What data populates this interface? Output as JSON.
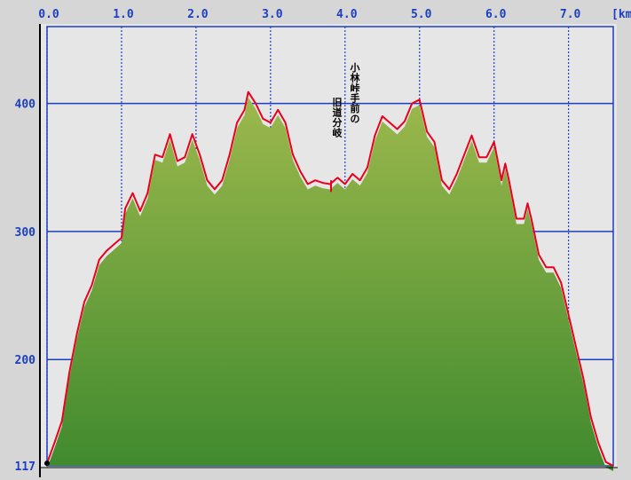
{
  "chart_data": {
    "type": "area",
    "xlabel": "",
    "ylabel": "",
    "x_unit": "[km]",
    "xlim": [
      0,
      7.6
    ],
    "ylim": [
      117,
      460
    ],
    "x_ticks": [
      "0.0",
      "1.0",
      "2.0",
      "3.0",
      "4.0",
      "5.0",
      "6.0",
      "7.0"
    ],
    "y_ticks": [
      "400",
      "300",
      "200",
      "117"
    ],
    "x_grid": [
      0,
      1,
      2,
      3,
      4,
      5,
      6,
      7
    ],
    "y_grid": [
      400,
      300,
      200
    ],
    "grid": true,
    "annotation": {
      "x": 4.05,
      "col1": "小林峠手前の",
      "col2": "旧道分岐"
    },
    "colors": {
      "background": "#d6d6d6",
      "plot_background": "#e6e6e6",
      "grid": "#1c3fc2",
      "line": "#e8001c",
      "fill_top": "#9cb84c",
      "fill_bottom": "#3f8a2e",
      "axis": "#000000"
    },
    "series": [
      {
        "values": [
          [
            0.0,
            119
          ],
          [
            0.1,
            135
          ],
          [
            0.2,
            152
          ],
          [
            0.3,
            190
          ],
          [
            0.4,
            220
          ],
          [
            0.5,
            245
          ],
          [
            0.6,
            258
          ],
          [
            0.7,
            278
          ],
          [
            0.8,
            285
          ],
          [
            0.9,
            290
          ],
          [
            1.0,
            295
          ],
          [
            1.05,
            318
          ],
          [
            1.15,
            330
          ],
          [
            1.25,
            316
          ],
          [
            1.35,
            330
          ],
          [
            1.45,
            360
          ],
          [
            1.55,
            358
          ],
          [
            1.65,
            376
          ],
          [
            1.75,
            355
          ],
          [
            1.85,
            358
          ],
          [
            1.95,
            376
          ],
          [
            2.05,
            360
          ],
          [
            2.15,
            340
          ],
          [
            2.25,
            333
          ],
          [
            2.35,
            340
          ],
          [
            2.45,
            360
          ],
          [
            2.55,
            385
          ],
          [
            2.65,
            395
          ],
          [
            2.7,
            409
          ],
          [
            2.8,
            400
          ],
          [
            2.9,
            388
          ],
          [
            3.0,
            385
          ],
          [
            3.1,
            395
          ],
          [
            3.2,
            385
          ],
          [
            3.3,
            360
          ],
          [
            3.4,
            347
          ],
          [
            3.5,
            337
          ],
          [
            3.6,
            340
          ],
          [
            3.7,
            338
          ],
          [
            3.8,
            337
          ],
          [
            3.9,
            342
          ],
          [
            4.0,
            337
          ],
          [
            4.1,
            345
          ],
          [
            4.2,
            340
          ],
          [
            4.3,
            350
          ],
          [
            4.4,
            375
          ],
          [
            4.5,
            390
          ],
          [
            4.6,
            385
          ],
          [
            4.7,
            380
          ],
          [
            4.8,
            386
          ],
          [
            4.9,
            400
          ],
          [
            5.0,
            403
          ],
          [
            5.1,
            378
          ],
          [
            5.2,
            370
          ],
          [
            5.3,
            340
          ],
          [
            5.4,
            333
          ],
          [
            5.5,
            345
          ],
          [
            5.6,
            360
          ],
          [
            5.7,
            375
          ],
          [
            5.8,
            358
          ],
          [
            5.9,
            358
          ],
          [
            6.0,
            370
          ],
          [
            6.1,
            340
          ],
          [
            6.15,
            353
          ],
          [
            6.2,
            340
          ],
          [
            6.3,
            310
          ],
          [
            6.4,
            310
          ],
          [
            6.45,
            322
          ],
          [
            6.5,
            310
          ],
          [
            6.6,
            282
          ],
          [
            6.7,
            272
          ],
          [
            6.8,
            272
          ],
          [
            6.9,
            260
          ],
          [
            7.0,
            235
          ],
          [
            7.1,
            210
          ],
          [
            7.2,
            185
          ],
          [
            7.3,
            155
          ],
          [
            7.4,
            135
          ],
          [
            7.5,
            120
          ],
          [
            7.6,
            117
          ]
        ]
      }
    ]
  }
}
